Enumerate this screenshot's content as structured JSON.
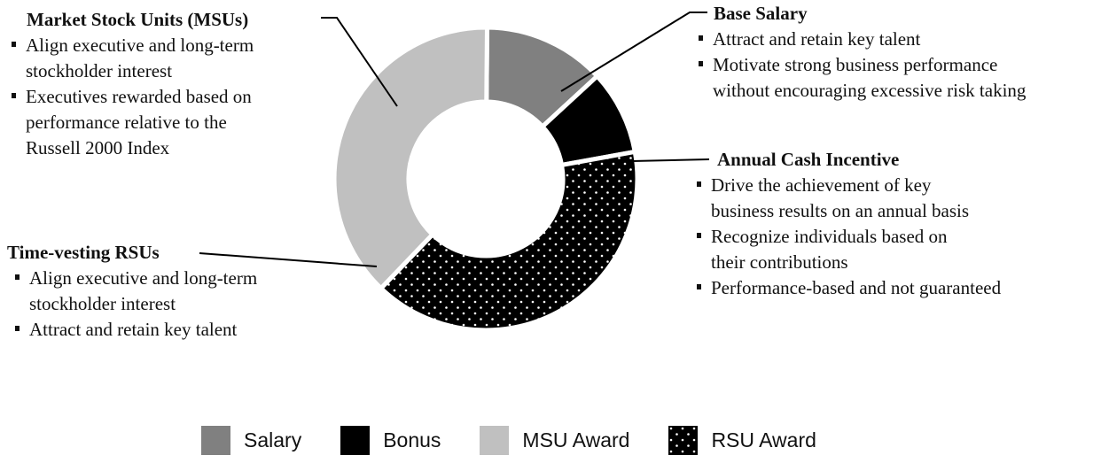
{
  "chart_data": {
    "type": "pie",
    "donut": true,
    "title": "",
    "slices": [
      {
        "label": "Salary",
        "value": 13,
        "color": "#808080",
        "pattern": "solid"
      },
      {
        "label": "Bonus",
        "value": 9,
        "color": "#000000",
        "pattern": "solid"
      },
      {
        "label": "RSU Award",
        "value": 40,
        "color": "#000000",
        "pattern": "white-dots"
      },
      {
        "label": "MSU Award",
        "value": 38,
        "color": "#c0c0c0",
        "pattern": "solid"
      }
    ],
    "legend": {
      "placement": "bottom",
      "items": [
        "Salary",
        "Bonus",
        "MSU Award",
        "RSU Award"
      ]
    }
  },
  "annotations": {
    "msu": {
      "title": "Market Stock Units (MSUs)",
      "bullets": [
        "Align executive and long-term\nstockholder interest",
        "Executives rewarded based on\nperformance relative to the\nRussell 2000 Index"
      ]
    },
    "base_salary": {
      "title": "Base Salary",
      "bullets": [
        "Attract and retain key talent",
        "Motivate strong business performance\nwithout encouraging excessive risk taking"
      ]
    },
    "annual_cash_incentive": {
      "title": "Annual Cash Incentive",
      "bullets": [
        "Drive the achievement of key\nbusiness results on an annual basis",
        "Recognize individuals based on\ntheir contributions",
        "Performance-based and not guaranteed"
      ]
    },
    "time_vesting_rsus": {
      "title": "Time-vesting RSUs",
      "bullets": [
        "Align executive and long-term\nstockholder interest",
        "Attract and retain key talent"
      ]
    }
  }
}
